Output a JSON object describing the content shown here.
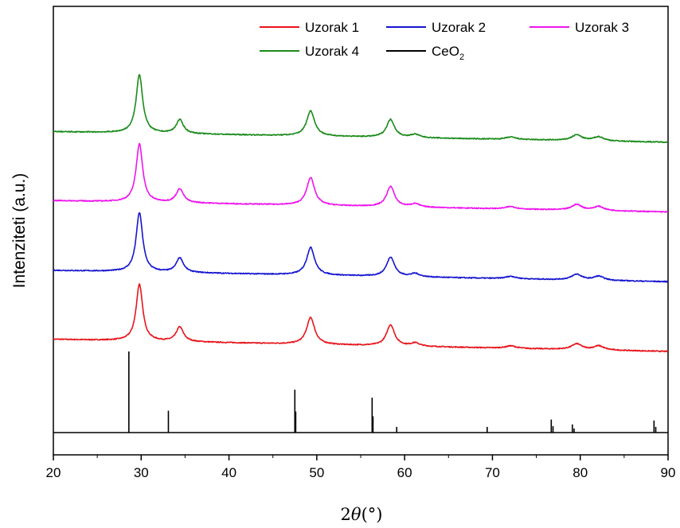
{
  "chart_data": {
    "type": "line",
    "title": "",
    "xlabel_prefix": "2",
    "xlabel_symbol": "θ",
    "xlabel_unit": "(°)",
    "ylabel": "Intenziteti (a.u.)",
    "xlim": [
      20,
      90
    ],
    "x_ticks": [
      "20",
      "30",
      "40",
      "50",
      "60",
      "70",
      "80",
      "90"
    ],
    "legend_position": "top-right",
    "series": [
      {
        "name": "Uzorak 1",
        "color": "#e8141b",
        "baseline": [
          [
            20,
            1.15
          ],
          [
            90,
            1.0
          ]
        ],
        "peaks": [
          [
            29.8,
            0.7,
            0.45
          ],
          [
            34.4,
            0.18,
            0.5
          ],
          [
            49.3,
            0.33,
            0.55
          ],
          [
            58.4,
            0.26,
            0.55
          ],
          [
            61.2,
            0.04,
            0.6
          ],
          [
            72.1,
            0.03,
            0.7
          ],
          [
            79.6,
            0.07,
            0.7
          ],
          [
            82.1,
            0.05,
            0.7
          ]
        ]
      },
      {
        "name": "Uzorak 2",
        "color": "#1515d0",
        "baseline": [
          [
            20,
            2.0
          ],
          [
            90,
            1.86
          ]
        ],
        "peaks": [
          [
            29.8,
            0.73,
            0.45
          ],
          [
            34.4,
            0.18,
            0.5
          ],
          [
            49.3,
            0.34,
            0.55
          ],
          [
            58.4,
            0.24,
            0.55
          ],
          [
            61.2,
            0.04,
            0.6
          ],
          [
            72.1,
            0.03,
            0.7
          ],
          [
            79.6,
            0.07,
            0.7
          ],
          [
            82.1,
            0.05,
            0.7
          ]
        ]
      },
      {
        "name": "Uzorak 3",
        "color": "#ee14ee",
        "baseline": [
          [
            20,
            2.86
          ],
          [
            90,
            2.72
          ]
        ],
        "peaks": [
          [
            29.8,
            0.72,
            0.45
          ],
          [
            34.4,
            0.17,
            0.5
          ],
          [
            49.3,
            0.34,
            0.55
          ],
          [
            58.4,
            0.25,
            0.55
          ],
          [
            61.2,
            0.04,
            0.6
          ],
          [
            72.1,
            0.03,
            0.7
          ],
          [
            79.6,
            0.07,
            0.7
          ],
          [
            82.1,
            0.05,
            0.7
          ]
        ]
      },
      {
        "name": "Uzorak 4",
        "color": "#1a8a1a",
        "baseline": [
          [
            20,
            3.71
          ],
          [
            90,
            3.58
          ]
        ],
        "peaks": [
          [
            29.8,
            0.72,
            0.45
          ],
          [
            34.4,
            0.17,
            0.5
          ],
          [
            49.3,
            0.31,
            0.55
          ],
          [
            58.4,
            0.22,
            0.55
          ],
          [
            61.2,
            0.04,
            0.6
          ],
          [
            72.1,
            0.03,
            0.7
          ],
          [
            79.6,
            0.07,
            0.7
          ],
          [
            82.1,
            0.05,
            0.7
          ]
        ]
      },
      {
        "name_main": "CeO",
        "name_sub": "2",
        "color": "#000000",
        "baseline_level": 0,
        "sticks": [
          [
            28.6,
            1.0
          ],
          [
            33.1,
            0.27
          ],
          [
            47.5,
            0.53
          ],
          [
            47.6,
            0.26
          ],
          [
            56.3,
            0.43
          ],
          [
            56.4,
            0.2
          ],
          [
            59.1,
            0.07
          ],
          [
            69.4,
            0.07
          ],
          [
            76.7,
            0.16
          ],
          [
            76.9,
            0.08
          ],
          [
            79.1,
            0.1
          ],
          [
            79.3,
            0.05
          ],
          [
            88.4,
            0.15
          ],
          [
            88.6,
            0.07
          ]
        ]
      }
    ]
  }
}
